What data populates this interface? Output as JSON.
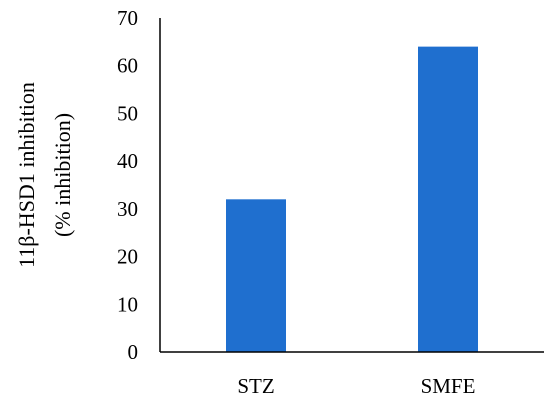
{
  "chart_data": {
    "type": "bar",
    "categories": [
      "STZ",
      "SMFE"
    ],
    "values": [
      32,
      64
    ],
    "title": "",
    "xlabel": "",
    "ylabel": [
      "11β-HSD1 inhibition",
      "(% inhibition)"
    ],
    "ylim": [
      0,
      70
    ],
    "yticks": [
      0,
      10,
      20,
      30,
      40,
      50,
      60,
      70
    ],
    "grid": false,
    "bar_color": "#1f6fcf",
    "axis_color": "#000000"
  }
}
